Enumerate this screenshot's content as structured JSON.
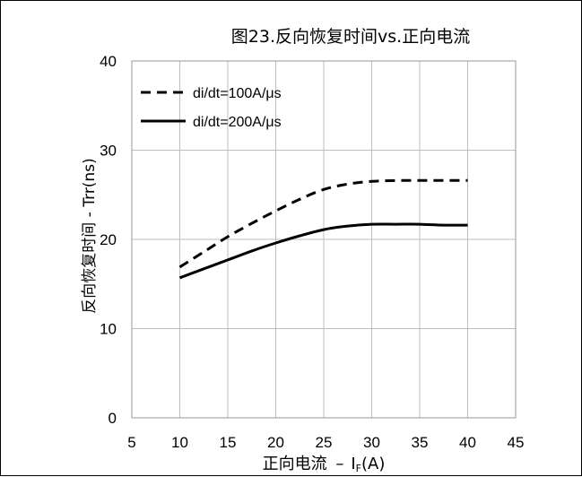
{
  "chart_data": {
    "type": "line",
    "title": "图23.反向恢复时间vs.正向电流",
    "xlabel": {
      "main": "正向电流 ",
      "dash": "–",
      "symbol": "I",
      "subscript": "F",
      "unit": "(A)"
    },
    "ylabel": "反向恢复时间 - Trr(ns)",
    "xlim": [
      5,
      45
    ],
    "ylim": [
      0,
      40
    ],
    "xticks": [
      5,
      10,
      15,
      20,
      25,
      30,
      35,
      40,
      45
    ],
    "yticks": [
      0,
      10,
      20,
      30,
      40
    ],
    "grid": true,
    "legend_position": "top-left",
    "series": [
      {
        "name": "di/dt=100A/μs",
        "style": "dashed",
        "color": "#000000",
        "x": [
          10,
          12.5,
          15,
          17.5,
          20,
          22.5,
          25,
          27.5,
          30,
          32.5,
          35,
          37.5,
          40
        ],
        "y": [
          16.9,
          18.6,
          20.3,
          21.8,
          23.2,
          24.5,
          25.6,
          26.2,
          26.5,
          26.6,
          26.6,
          26.6,
          26.6
        ]
      },
      {
        "name": "di/dt=200A/μs",
        "style": "solid",
        "color": "#000000",
        "x": [
          10,
          12.5,
          15,
          17.5,
          20,
          22.5,
          25,
          27.5,
          30,
          32.5,
          35,
          37.5,
          40
        ],
        "y": [
          15.7,
          16.7,
          17.7,
          18.7,
          19.6,
          20.4,
          21.1,
          21.5,
          21.7,
          21.7,
          21.7,
          21.6,
          21.6
        ]
      }
    ]
  }
}
